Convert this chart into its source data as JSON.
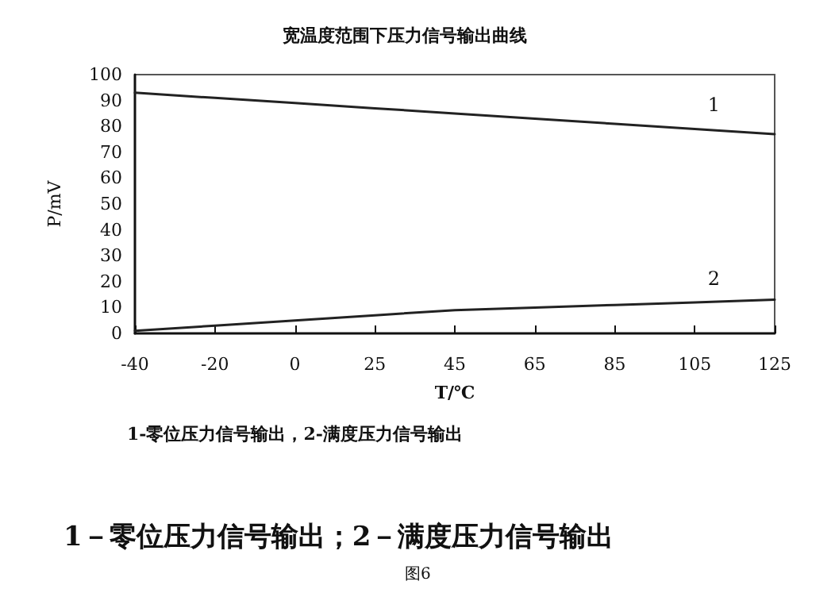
{
  "chart_data": {
    "type": "line",
    "title": "宽温度范围下压力信号输出曲线",
    "xlabel": "T/℃",
    "ylabel": "P/mV",
    "categories": [
      "-40",
      "-20",
      "0",
      "25",
      "45",
      "65",
      "85",
      "105",
      "125"
    ],
    "series": [
      {
        "name": "1",
        "color": "#222222",
        "values": [
          93,
          91,
          89,
          87,
          85,
          83,
          81,
          79,
          77
        ]
      },
      {
        "name": "2",
        "color": "#222222",
        "values": [
          1,
          3,
          5,
          7,
          9,
          10,
          11,
          12,
          13
        ]
      }
    ],
    "ylim": [
      0,
      100
    ],
    "yticks": [
      0,
      10,
      20,
      30,
      40,
      50,
      60,
      70,
      80,
      90,
      100
    ],
    "grid": false,
    "legend": false,
    "marker": "none",
    "line_style": "solid",
    "annotations": [
      "1-零位压力信号输出，2-满度压力信号输出",
      "1－零位压力信号输出；2－满度压力信号输出",
      "图6"
    ]
  }
}
